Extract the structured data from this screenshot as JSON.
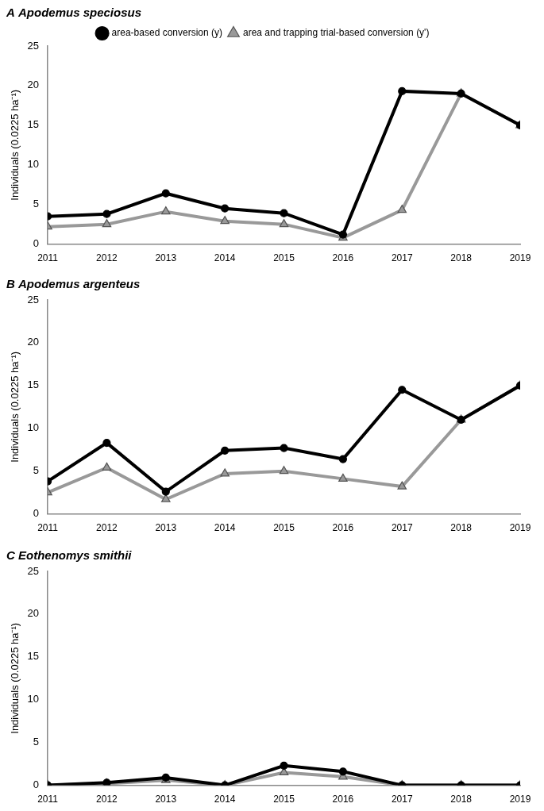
{
  "chart_data": [
    {
      "type": "line",
      "title": "A Apodemus speciosus",
      "y_label": "Individuals (0.0225 ha⁻¹)",
      "categories": [
        "2011",
        "2012",
        "2013",
        "2014",
        "2015",
        "2016",
        "2017",
        "2018",
        "2019"
      ],
      "series": [
        {
          "name": "area-based conversion (y)",
          "color": "#000000",
          "marker": "circle",
          "line_style": "solid",
          "values": [
            3.5,
            3.8,
            6.4,
            4.5,
            3.9,
            1.2,
            19.3,
            19.0,
            15.0
          ]
        },
        {
          "name": "area and trapping trial-based conversion (y')",
          "color": "#999999",
          "marker": "triangle",
          "line_style": "solid",
          "values": [
            2.2,
            2.5,
            4.1,
            2.9,
            2.5,
            0.8,
            4.3,
            19.0,
            15.0
          ]
        }
      ],
      "ylim": [
        0,
        25
      ],
      "yticks": [
        0,
        5,
        10,
        15,
        20,
        25
      ],
      "grid": false,
      "legend": "top"
    },
    {
      "type": "line",
      "title": "B Apodemus argenteus",
      "y_label": "Individuals (0.0225 ha⁻¹)",
      "categories": [
        "2011",
        "2012",
        "2013",
        "2014",
        "2015",
        "2016",
        "2017",
        "2018",
        "2019"
      ],
      "series": [
        {
          "color": "#000000",
          "marker": "circle",
          "line_style": "solid",
          "values": [
            3.8,
            8.3,
            2.6,
            7.4,
            7.7,
            6.4,
            14.5,
            11.0,
            15.0
          ]
        },
        {
          "color": "#999999",
          "marker": "triangle",
          "line_style": "solid",
          "values": [
            2.5,
            5.4,
            1.7,
            4.7,
            5.0,
            4.1,
            3.2,
            11.0,
            15.0
          ]
        }
      ],
      "ylim": [
        0,
        25
      ],
      "yticks": [
        0,
        5,
        10,
        15,
        20,
        25
      ],
      "grid": false
    },
    {
      "type": "line",
      "title": "C Eothenomys smithii",
      "y_label": "Individuals (0.0225 ha⁻¹)",
      "categories": [
        "2011",
        "2012",
        "2013",
        "2014",
        "2015",
        "2016",
        "2017",
        "2018",
        "2019"
      ],
      "series": [
        {
          "color": "#000000",
          "marker": "circle",
          "line_style": "solid",
          "values": [
            0,
            0.3,
            0.9,
            0,
            2.3,
            1.6,
            0,
            0,
            0
          ]
        },
        {
          "color": "#999999",
          "marker": "triangle",
          "line_style": "solid",
          "values": [
            0,
            0.2,
            0.6,
            0,
            1.5,
            1.0,
            0,
            0,
            0
          ]
        }
      ],
      "ylim": [
        0,
        25
      ],
      "yticks": [
        0,
        5,
        10,
        15,
        20,
        25
      ],
      "grid": false
    }
  ]
}
